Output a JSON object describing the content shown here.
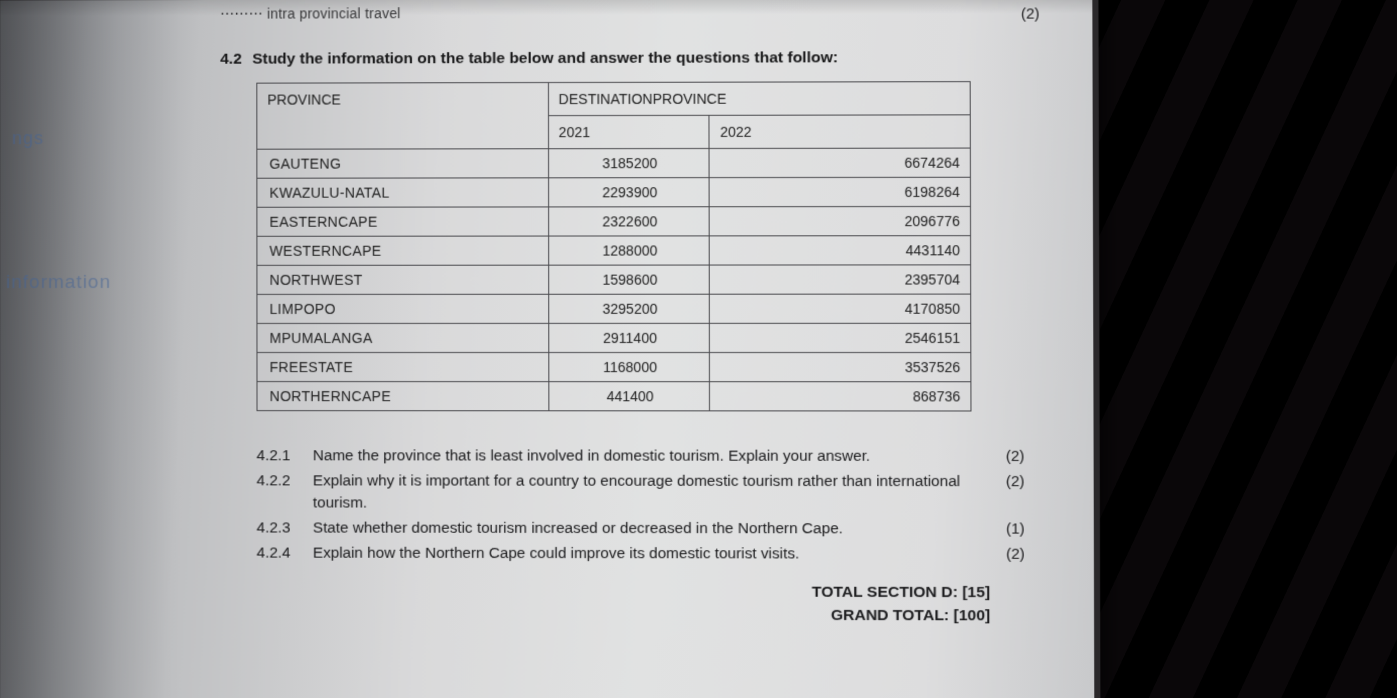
{
  "truncated_top": "⋯⋯⋯ intra provincial travel",
  "mark_top": "(2)",
  "margin_notes": {
    "n1": "ngs",
    "n2": "information"
  },
  "heading_num": "4.2",
  "heading_text": "Study the information on the table below and answer the questions that follow:",
  "table": {
    "header_left": "PROVINCE",
    "header_right": "DESTINATIONPROVINCE",
    "year1": "2021",
    "year2": "2022",
    "rows": [
      {
        "province": "GAUTENG",
        "y1": "3185200",
        "y2": "6674264"
      },
      {
        "province": "KWAZULU-NATAL",
        "y1": "2293900",
        "y2": "6198264"
      },
      {
        "province": "EASTERNCAPE",
        "y1": "2322600",
        "y2": "2096776"
      },
      {
        "province": "WESTERNCAPE",
        "y1": "1288000",
        "y2": "4431140"
      },
      {
        "province": "NORTHWEST",
        "y1": "1598600",
        "y2": "2395704"
      },
      {
        "province": "LIMPOPO",
        "y1": "3295200",
        "y2": "4170850"
      },
      {
        "province": "MPUMALANGA",
        "y1": "2911400",
        "y2": "2546151"
      },
      {
        "province": "FREESTATE",
        "y1": "1168000",
        "y2": "3537526"
      },
      {
        "province": "NORTHERNCAPE",
        "y1": "441400",
        "y2": "868736"
      }
    ]
  },
  "questions": [
    {
      "num": "4.2.1",
      "text": "Name the province that is least involved in domestic tourism. Explain your answer.",
      "marks": "(2)"
    },
    {
      "num": "4.2.2",
      "text": "Explain why it is important for a country to encourage domestic tourism rather than international tourism.",
      "marks": "(2)"
    },
    {
      "num": "4.2.3",
      "text": "State whether domestic tourism increased or decreased in the Northern Cape.",
      "marks": "(1)"
    },
    {
      "num": "4.2.4",
      "text": "Explain how the Northern Cape could improve its domestic tourist visits.",
      "marks": "(2)"
    }
  ],
  "totals": {
    "section": "TOTAL SECTION D: [15]",
    "grand": "GRAND TOTAL:  [100]"
  },
  "colors": {
    "text": "#1d1d1f",
    "border": "#4a4a4e",
    "paper_light": "#e1e2e2",
    "paper_dark": "#6f7176",
    "bg_fabric": "#1a1618"
  }
}
